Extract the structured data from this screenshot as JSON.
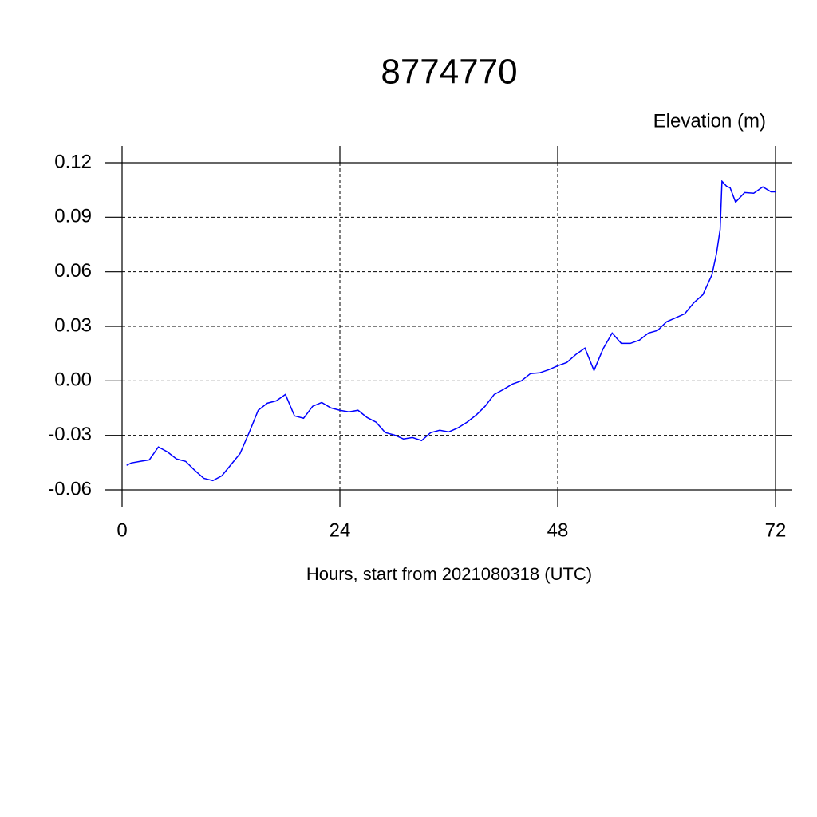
{
  "chart_data": {
    "type": "line",
    "title": "8774770",
    "subtitle": "Elevation (m)",
    "x_label": "Hours, start from 2021080318 (UTC)",
    "x": [
      0.5,
      1,
      2,
      3,
      4,
      5,
      6,
      7,
      8,
      9,
      10,
      11,
      12,
      13,
      14,
      15,
      16,
      17,
      18,
      19,
      20,
      21,
      22,
      23,
      24,
      25,
      26,
      27,
      28,
      29,
      30,
      31,
      32,
      33,
      34,
      35,
      36,
      37,
      38,
      39,
      40,
      41,
      42,
      43,
      44,
      45,
      46,
      47,
      48,
      49,
      50,
      51,
      52,
      53,
      54,
      55,
      56,
      57,
      58,
      59,
      60,
      61,
      62,
      63,
      64,
      65,
      65.5,
      65.9,
      66.1,
      66.6,
      67,
      67.6,
      68.6,
      69.6,
      70.6,
      71.5,
      72
    ],
    "series": [
      {
        "name": "Elevation",
        "color": "#0000ff",
        "values": [
          -0.0465,
          -0.0452,
          -0.0443,
          -0.0435,
          -0.0364,
          -0.0391,
          -0.043,
          -0.0443,
          -0.0492,
          -0.0536,
          -0.0549,
          -0.0522,
          -0.0461,
          -0.04,
          -0.0285,
          -0.0162,
          -0.0123,
          -0.011,
          -0.0075,
          -0.0193,
          -0.0206,
          -0.014,
          -0.0119,
          -0.0149,
          -0.0162,
          -0.0171,
          -0.0162,
          -0.0202,
          -0.0228,
          -0.0285,
          -0.0298,
          -0.032,
          -0.0312,
          -0.0329,
          -0.0285,
          -0.0272,
          -0.0281,
          -0.0259,
          -0.0228,
          -0.0189,
          -0.014,
          -0.0075,
          -0.0048,
          -0.0018,
          0,
          0.004,
          0.0044,
          0.0061,
          0.0083,
          0.0101,
          0.0145,
          0.018,
          0.0057,
          0.0176,
          0.0263,
          0.0206,
          0.0206,
          0.0224,
          0.0263,
          0.0277,
          0.0325,
          0.0347,
          0.0369,
          0.043,
          0.0474,
          0.0584,
          0.0702,
          0.0834,
          0.1098,
          0.1071,
          0.1062,
          0.0983,
          0.1036,
          0.1032,
          0.1067,
          0.104,
          0.104
        ]
      }
    ],
    "xlim": [
      0,
      72
    ],
    "xticks": [
      0,
      24,
      48,
      72
    ],
    "ylim": [
      -0.06,
      0.12
    ],
    "yticks": [
      0.12,
      0.09,
      0.06,
      0.03,
      {
        "value": 0,
        "label": "0.00"
      },
      -0.03,
      -0.06
    ],
    "grid": true
  }
}
